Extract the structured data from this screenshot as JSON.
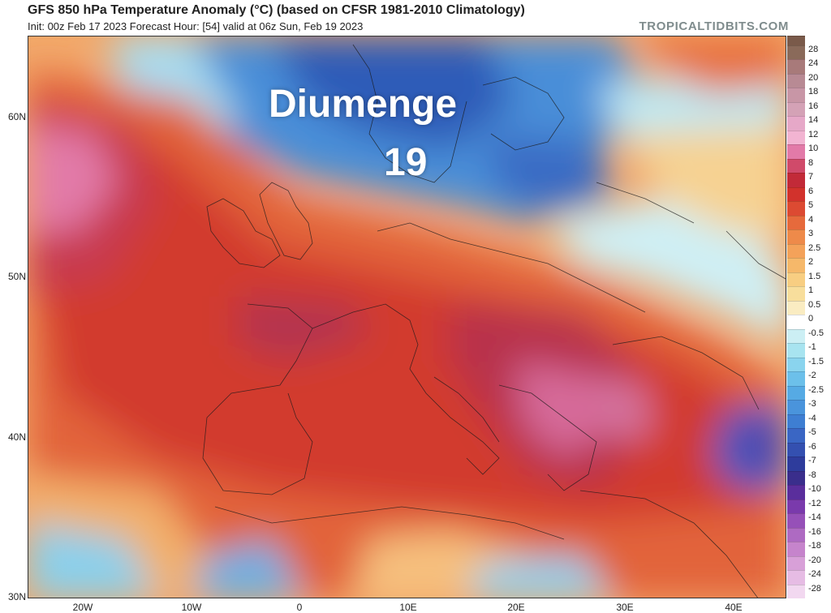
{
  "header": {
    "title": "GFS 850 hPa Temperature Anomaly (°C) (based on CFSR 1981-2010 Climatology)",
    "subtitle": "Init: 00z Feb 17 2023   Forecast Hour: [54]   valid at 06z Sun, Feb 19 2023",
    "brand": "TROPICALTIDBITS.COM"
  },
  "overlay": {
    "line1": "Diumenge",
    "line2": "19"
  },
  "axes": {
    "lat_labels": [
      "60N",
      "50N",
      "40N",
      "30N"
    ],
    "lon_labels": [
      "20W",
      "10W",
      "0",
      "10E",
      "20E",
      "30E",
      "40E"
    ]
  },
  "colorbar": {
    "labels": [
      "28",
      "24",
      "20",
      "18",
      "16",
      "14",
      "12",
      "10",
      "8",
      "7",
      "6",
      "5",
      "4",
      "3",
      "2.5",
      "2",
      "1.5",
      "1",
      "0.5",
      "0",
      "-0.5",
      "-1",
      "-1.5",
      "-2",
      "-2.5",
      "-3",
      "-4",
      "-5",
      "-6",
      "-7",
      "-8",
      "-10",
      "-12",
      "-14",
      "-16",
      "-18",
      "-20",
      "-24",
      "-28"
    ],
    "colors": [
      "#8a6a5a",
      "#a87a7a",
      "#b88a94",
      "#c896a6",
      "#d4a2b6",
      "#e6a8c8",
      "#f2b4d2",
      "#e27aa8",
      "#d04a6a",
      "#c22a38",
      "#d2322c",
      "#dc4a32",
      "#e66a3c",
      "#ee8a4a",
      "#f4a25a",
      "#f6b86a",
      "#f8ce82",
      "#f8de9c",
      "#faecc2",
      "#ffffff",
      "#cceff4",
      "#a8e4f0",
      "#8ad4ee",
      "#6cc0ea",
      "#56aae4",
      "#4a94dc",
      "#3e7ed2",
      "#3a66c4",
      "#3450b0",
      "#2e3c9c",
      "#3a2e8c",
      "#5a2e9c",
      "#7a3aac",
      "#9650b8",
      "#ae6ac2",
      "#c684cc",
      "#d8a0d8",
      "#e6bce4",
      "#f2d8f0"
    ]
  }
}
